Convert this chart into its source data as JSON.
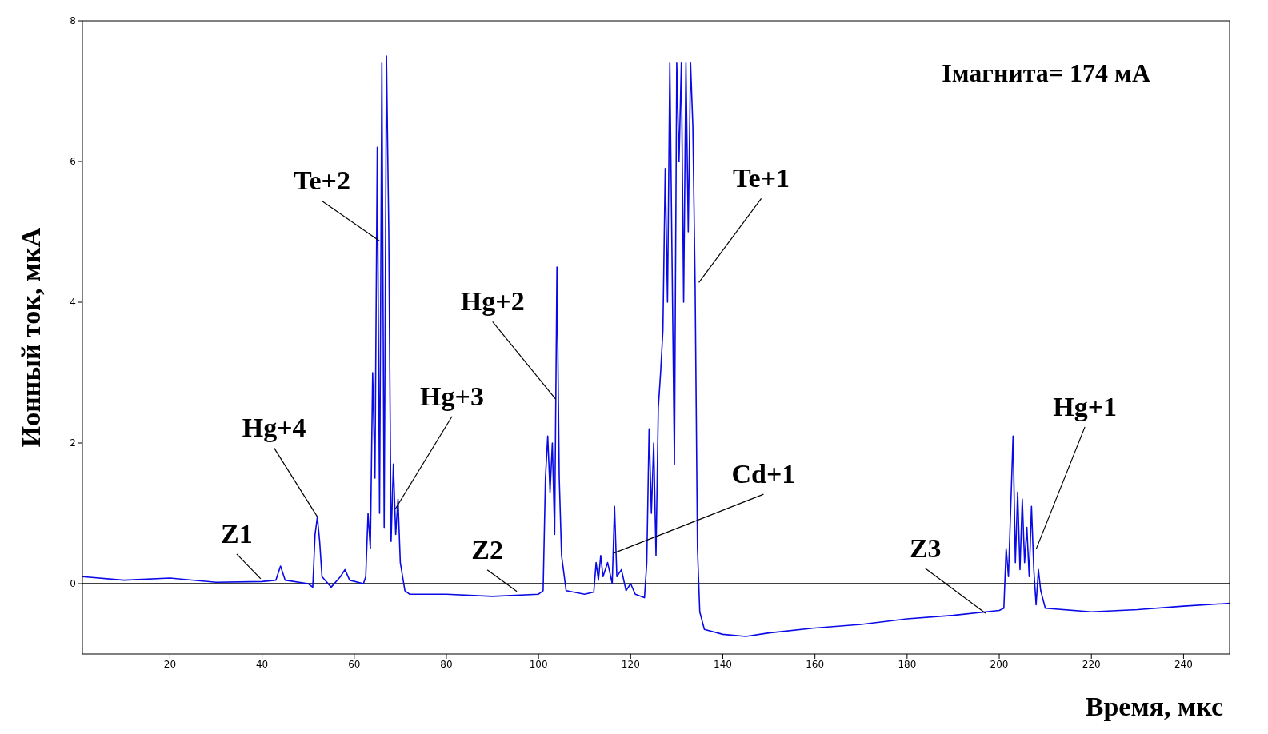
{
  "chart_data": {
    "type": "line",
    "xlabel": "Время, мкс",
    "ylabel": "Ионный ток, мкА",
    "x": [
      1,
      10,
      20,
      30,
      40,
      43,
      44,
      45,
      50,
      51,
      51.5,
      52,
      52.5,
      53,
      55,
      57,
      58,
      59,
      62,
      62.5,
      63,
      63.5,
      64,
      64.5,
      65,
      65.5,
      66,
      66.5,
      67,
      67.5,
      68,
      68.5,
      69,
      69.5,
      70,
      71,
      72,
      80,
      90,
      100,
      101,
      101.5,
      102,
      102.5,
      103,
      103.5,
      104,
      104.5,
      105,
      106,
      110,
      112,
      112.5,
      113,
      113.5,
      114,
      115,
      116,
      116.5,
      117,
      118,
      119,
      120,
      121,
      123,
      123.5,
      124,
      124.5,
      125,
      125.5,
      126,
      126.5,
      127,
      127.5,
      128,
      128.5,
      129,
      129.5,
      130,
      130.5,
      131,
      131.5,
      132,
      132.5,
      133,
      133.5,
      134,
      134.5,
      135,
      136,
      140,
      145,
      150,
      160,
      170,
      180,
      190,
      200,
      201,
      201.5,
      202,
      203,
      203.5,
      204,
      204.5,
      205,
      205.5,
      206,
      206.5,
      207,
      207.5,
      208,
      208.5,
      209,
      210,
      220,
      230,
      240,
      250
    ],
    "series": [
      {
        "color": "#0a0ae6",
        "values": [
          0.1,
          0.05,
          0.08,
          0.02,
          0.03,
          0.05,
          0.25,
          0.05,
          0,
          -0.05,
          0.7,
          0.95,
          0.6,
          0.1,
          -0.05,
          0.1,
          0.2,
          0.05,
          0,
          0.1,
          1.0,
          0.5,
          3.0,
          1.5,
          6.2,
          1.0,
          7.4,
          0.8,
          7.5,
          5.0,
          0.6,
          1.7,
          0.7,
          1.2,
          0.3,
          -0.1,
          -0.15,
          -0.15,
          -0.18,
          -0.15,
          -0.1,
          1.5,
          2.1,
          1.3,
          2.0,
          0.7,
          4.5,
          1.5,
          0.4,
          -0.1,
          -0.15,
          -0.12,
          0.3,
          0.05,
          0.4,
          0.1,
          0.3,
          0,
          1.1,
          0.1,
          0.2,
          -0.1,
          0,
          -0.15,
          -0.2,
          0.3,
          2.2,
          1.0,
          2.0,
          0.4,
          2.5,
          3.0,
          3.6,
          5.9,
          4.0,
          7.4,
          4.5,
          1.7,
          7.4,
          6.0,
          7.4,
          4.0,
          7.4,
          5.0,
          7.4,
          6.5,
          4.2,
          0.5,
          -0.4,
          -0.65,
          -0.72,
          -0.75,
          -0.7,
          -0.63,
          -0.58,
          -0.5,
          -0.45,
          -0.38,
          -0.35,
          0.5,
          0.1,
          2.1,
          0.3,
          1.3,
          0.2,
          1.2,
          0.3,
          0.8,
          0.1,
          1.1,
          0.2,
          -0.3,
          0.2,
          -0.1,
          -0.35,
          -0.4,
          -0.37,
          -0.32,
          -0.28
        ]
      }
    ],
    "xlim": [
      1,
      250
    ],
    "xticks": [
      20,
      40,
      60,
      80,
      100,
      120,
      140,
      160,
      180,
      200,
      220,
      240
    ],
    "ylim": [
      -1,
      8
    ],
    "yticks": [
      0,
      2,
      4,
      6,
      8
    ],
    "grid": false,
    "legend": false,
    "marker": "none",
    "line_style": "solid",
    "ref_lines": [
      {
        "axis": "y",
        "value": 0,
        "color": "#000000"
      }
    ],
    "annotations": [
      "Iмагнита= 174 мА",
      {
        "text": "Z1",
        "x": 39.7,
        "y": 0.07
      },
      {
        "text": "Hg+4",
        "x": 52,
        "y": 0.95
      },
      {
        "text": "Te+2",
        "x": 65.5,
        "y": 4.87
      },
      {
        "text": "Hg+3",
        "x": 68.9,
        "y": 1.06
      },
      {
        "text": "Z2",
        "x": 95.3,
        "y": -0.11
      },
      {
        "text": "Hg+2",
        "x": 103.75,
        "y": 2.62
      },
      {
        "text": "Te+1",
        "x": 134.8,
        "y": 4.28
      },
      {
        "text": "Cd+1",
        "x": 116.2,
        "y": 0.43
      },
      {
        "text": "Z3",
        "x": 197,
        "y": -0.42
      },
      {
        "text": "Hg+1",
        "x": 208,
        "y": 0.49
      }
    ]
  }
}
